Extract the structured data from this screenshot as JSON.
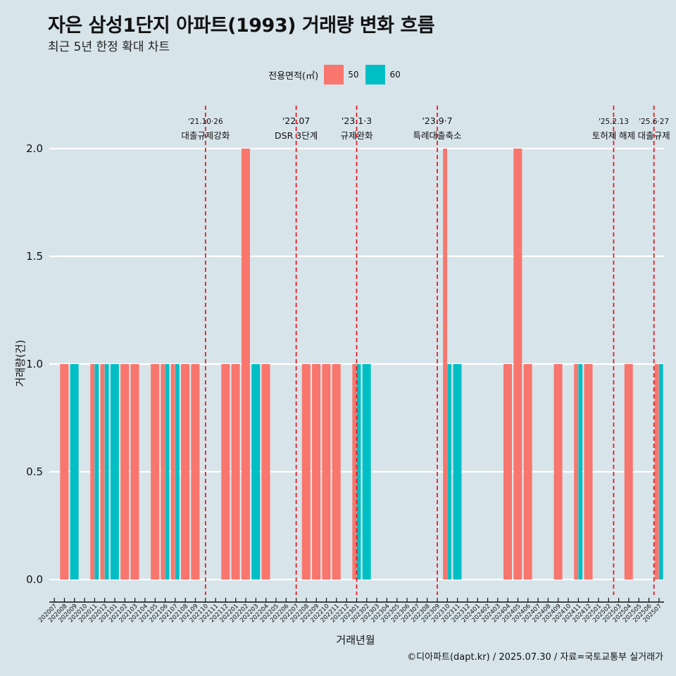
{
  "header": {
    "title": "자은 삼성1단지 아파트(1993) 거래량 변화 흐름",
    "subtitle": "최근 5년 한정 확대 차트"
  },
  "legend": {
    "title": "전용면적(㎡)",
    "items": [
      {
        "label": "50",
        "color": "#F8766D"
      },
      {
        "label": "60",
        "color": "#00BFC4"
      }
    ]
  },
  "caption": "©디아파트(dapt.kr) / 2025.07.30 / 자료=국토교통부 실거래가",
  "chart_data": {
    "type": "bar",
    "xlabel": "거래년월",
    "ylabel": "거래량(건)",
    "ylim": [
      0,
      2.2
    ],
    "yticks": [
      0.0,
      0.5,
      1.0,
      1.5,
      2.0
    ],
    "ytick_labels": [
      "0.0",
      "0.5",
      "1.0",
      "1.5",
      "2.0"
    ],
    "categories": [
      "202007",
      "202008",
      "202009",
      "202010",
      "202011",
      "202012",
      "202101",
      "202102",
      "202103",
      "202104",
      "202105",
      "202106",
      "202107",
      "202108",
      "202109",
      "202110",
      "202111",
      "202112",
      "202201",
      "202202",
      "202203",
      "202204",
      "202205",
      "202206",
      "202207",
      "202208",
      "202209",
      "202210",
      "202211",
      "202212",
      "202301",
      "202302",
      "202303",
      "202304",
      "202305",
      "202306",
      "202307",
      "202308",
      "202309",
      "202310",
      "202311",
      "202312",
      "202401",
      "202402",
      "202403",
      "202404",
      "202405",
      "202406",
      "202407",
      "202408",
      "202409",
      "202410",
      "202411",
      "202412",
      "202501",
      "202502",
      "202503",
      "202504",
      "202505",
      "202506",
      "202507"
    ],
    "series": [
      {
        "name": "50",
        "color": "#F8766D",
        "values": [
          0,
          1,
          0,
          0,
          1,
          1,
          0,
          1,
          1,
          0,
          1,
          1,
          1,
          1,
          1,
          0,
          0,
          1,
          1,
          2,
          0,
          1,
          0,
          0,
          0,
          1,
          1,
          1,
          1,
          0,
          1,
          0,
          0,
          0,
          0,
          0,
          0,
          0,
          0,
          2,
          0,
          0,
          0,
          0,
          0,
          1,
          2,
          1,
          0,
          0,
          1,
          0,
          1,
          1,
          0,
          0,
          0,
          1,
          0,
          0,
          1
        ]
      },
      {
        "name": "60",
        "color": "#00BFC4",
        "values": [
          0,
          0,
          1,
          0,
          1,
          1,
          1,
          0,
          0,
          0,
          0,
          1,
          1,
          0,
          0,
          0,
          0,
          0,
          0,
          0,
          1,
          0,
          0,
          0,
          0,
          0,
          0,
          0,
          0,
          0,
          1,
          1,
          0,
          0,
          0,
          0,
          0,
          0,
          0,
          1,
          1,
          0,
          0,
          0,
          0,
          0,
          0,
          0,
          0,
          0,
          0,
          0,
          1,
          0,
          0,
          0,
          0,
          0,
          0,
          0,
          1
        ]
      }
    ],
    "annotations": [
      {
        "position": 15.0,
        "line1": "'21.10·26",
        "line2": "대출규제강화"
      },
      {
        "position": 24.0,
        "line1": "'22.07",
        "line2": "DSR 3단계"
      },
      {
        "position": 30.0,
        "line1": "'23.1·3",
        "line2": "규제완화"
      },
      {
        "position": 38.0,
        "line1": "'23.9·7",
        "line2": "특례대출축소"
      },
      {
        "position": 55.5,
        "line1": "'25.2.13",
        "line2": "토허제 해제"
      },
      {
        "position": 59.5,
        "line1": "'25.6·27",
        "line2": "대출규제"
      }
    ]
  }
}
